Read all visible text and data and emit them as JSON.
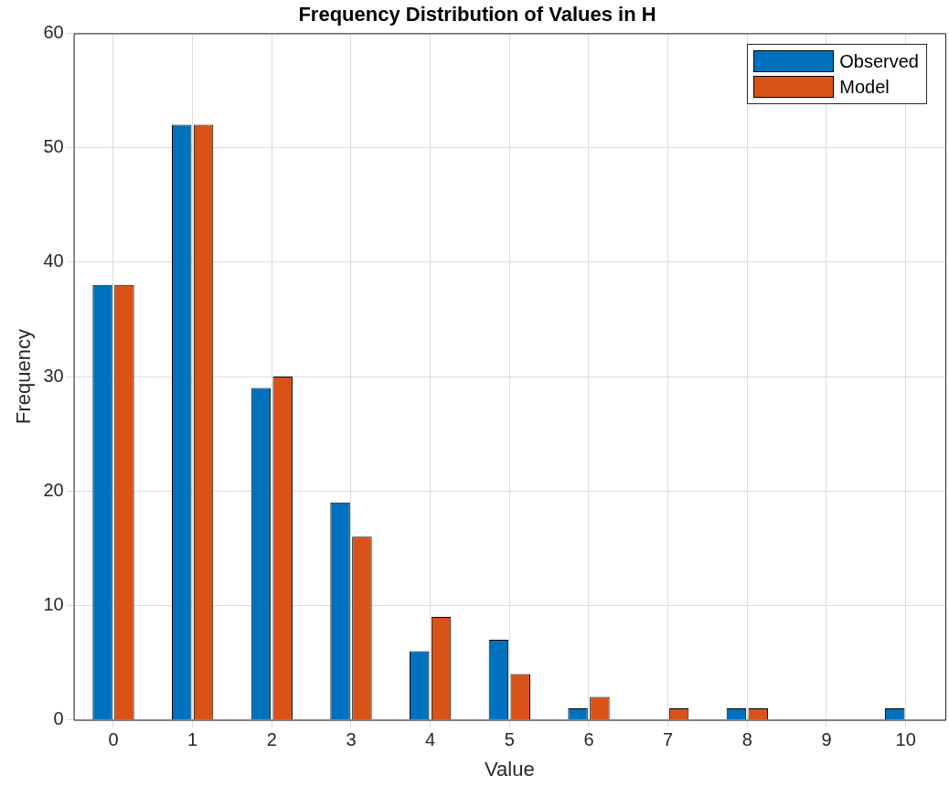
{
  "chart_data": {
    "type": "bar",
    "title": "Frequency Distribution of Values in H",
    "xlabel": "Value",
    "ylabel": "Frequency",
    "categories": [
      "0",
      "1",
      "2",
      "3",
      "4",
      "5",
      "6",
      "7",
      "8",
      "9",
      "10"
    ],
    "series": [
      {
        "name": "Observed",
        "color": "#0072bd",
        "values": [
          38,
          52,
          29,
          19,
          6,
          7,
          1,
          0,
          1,
          0,
          1
        ]
      },
      {
        "name": "Model",
        "color": "#d95319",
        "values": [
          38,
          52,
          30,
          16,
          9,
          4,
          2,
          1,
          1,
          0,
          0
        ]
      }
    ],
    "ylim": [
      0,
      60
    ],
    "yticks": [
      0,
      10,
      20,
      30,
      40,
      50,
      60
    ],
    "grid": true,
    "legend": "top right"
  }
}
